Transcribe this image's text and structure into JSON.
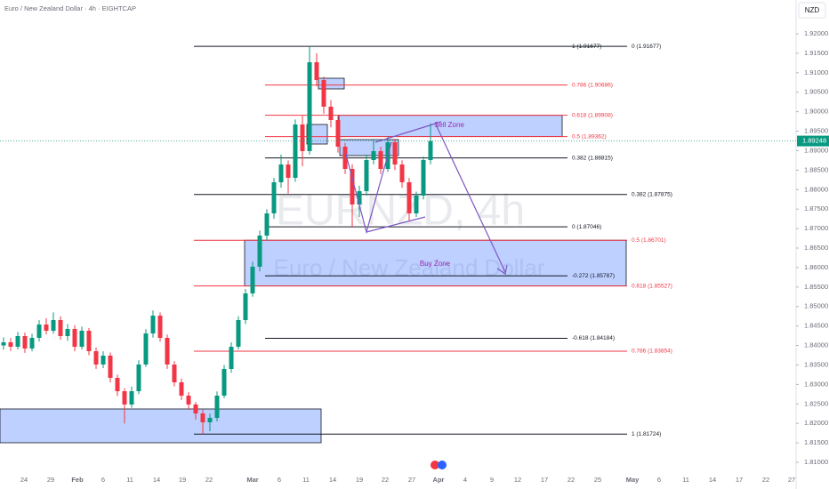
{
  "chart_data": {
    "type": "candlestick",
    "title": "Euro / New Zealand Dollar · 4h · EIGHTCAP",
    "watermark": "EURNZD, 4h",
    "watermark_sub": "Euro / New Zealand Dollar",
    "currency": "NZD",
    "up_color": "#089981",
    "down_color": "#f23645",
    "ylim": [
      1.80316,
      1.92867
    ],
    "yticks": [
      {
        "value": 1.81,
        "label": "1.81000"
      },
      {
        "value": 1.815,
        "label": "1.81500"
      },
      {
        "value": 1.82,
        "label": "1.82000"
      },
      {
        "value": 1.825,
        "label": "1.82500"
      },
      {
        "value": 1.83,
        "label": "1.83000"
      },
      {
        "value": 1.835,
        "label": "1.83500"
      },
      {
        "value": 1.84,
        "label": "1.84000"
      },
      {
        "value": 1.845,
        "label": "1.84500"
      },
      {
        "value": 1.85,
        "label": "1.85000"
      },
      {
        "value": 1.855,
        "label": "1.85500"
      },
      {
        "value": 1.86,
        "label": "1.86000"
      },
      {
        "value": 1.865,
        "label": "1.86500"
      },
      {
        "value": 1.87,
        "label": "1.87000"
      },
      {
        "value": 1.875,
        "label": "1.87500"
      },
      {
        "value": 1.88,
        "label": "1.88000"
      },
      {
        "value": 1.885,
        "label": "1.88500"
      },
      {
        "value": 1.89,
        "label": "1.89000"
      },
      {
        "value": 1.895,
        "label": "1.89500"
      },
      {
        "value": 1.9,
        "label": "1.90000"
      },
      {
        "value": 1.905,
        "label": "1.90500"
      },
      {
        "value": 1.91,
        "label": "1.91000"
      },
      {
        "value": 1.915,
        "label": "1.91500"
      },
      {
        "value": 1.92,
        "label": "1.92000"
      }
    ],
    "x_labels": [
      "24",
      "29",
      "Feb",
      "6",
      "11",
      "14",
      "19",
      "22",
      "Mar",
      "6",
      "11",
      "14",
      "19",
      "22",
      "27",
      "Apr",
      "4",
      "9",
      "12",
      "17",
      "22",
      "25",
      "May",
      "6",
      "11",
      "14",
      "17",
      "22",
      "27"
    ],
    "last_price": 1.89248,
    "last_price_label": "1.89248",
    "candles": [
      [
        1.84,
        1.8421,
        1.8389,
        1.84081
      ],
      [
        1.84081,
        1.8419,
        1.8386,
        1.83967
      ],
      [
        1.83967,
        1.8435,
        1.839,
        1.84241
      ],
      [
        1.84241,
        1.8433,
        1.8381,
        1.83922
      ],
      [
        1.83922,
        1.843,
        1.8385,
        1.84195
      ],
      [
        1.84195,
        1.8465,
        1.841,
        1.84538
      ],
      [
        1.84538,
        1.847,
        1.8428,
        1.84378
      ],
      [
        1.84378,
        1.8485,
        1.843,
        1.84652
      ],
      [
        1.84652,
        1.8475,
        1.8415,
        1.84241
      ],
      [
        1.84241,
        1.8455,
        1.8412,
        1.84424
      ],
      [
        1.84424,
        1.8452,
        1.8385,
        1.83967
      ],
      [
        1.83967,
        1.8448,
        1.839,
        1.84378
      ],
      [
        1.84378,
        1.8445,
        1.8375,
        1.83853
      ],
      [
        1.83853,
        1.8395,
        1.834,
        1.83511
      ],
      [
        1.83511,
        1.8385,
        1.8342,
        1.83739
      ],
      [
        1.83739,
        1.8382,
        1.8305,
        1.83168
      ],
      [
        1.83168,
        1.8325,
        1.827,
        1.82826
      ],
      [
        1.82826,
        1.829,
        1.82,
        1.82484
      ],
      [
        1.82484,
        1.8295,
        1.824,
        1.82826
      ],
      [
        1.82826,
        1.8362,
        1.8275,
        1.83511
      ],
      [
        1.83511,
        1.8442,
        1.8345,
        1.84309
      ],
      [
        1.84309,
        1.849,
        1.842,
        1.84766
      ],
      [
        1.84766,
        1.8485,
        1.841,
        1.84195
      ],
      [
        1.84195,
        1.8428,
        1.834,
        1.83511
      ],
      [
        1.83511,
        1.836,
        1.8295,
        1.83054
      ],
      [
        1.83054,
        1.8315,
        1.826,
        1.82712
      ],
      [
        1.82712,
        1.828,
        1.8235,
        1.82484
      ],
      [
        1.82484,
        1.8255,
        1.821,
        1.82256
      ],
      [
        1.82256,
        1.8235,
        1.81724,
        1.82027
      ],
      [
        1.82027,
        1.8225,
        1.818,
        1.82142
      ],
      [
        1.82142,
        1.8282,
        1.8205,
        1.82712
      ],
      [
        1.82712,
        1.835,
        1.8265,
        1.83397
      ],
      [
        1.83397,
        1.8408,
        1.833,
        1.83967
      ],
      [
        1.83967,
        1.8475,
        1.839,
        1.84652
      ],
      [
        1.84652,
        1.8545,
        1.8455,
        1.85336
      ],
      [
        1.85336,
        1.8615,
        1.8525,
        1.86021
      ],
      [
        1.86021,
        1.8695,
        1.859,
        1.8682
      ],
      [
        1.8682,
        1.875,
        1.867,
        1.8739
      ],
      [
        1.8739,
        1.883,
        1.8725,
        1.88189
      ],
      [
        1.88189,
        1.889,
        1.8805,
        1.88645
      ],
      [
        1.88645,
        1.8875,
        1.879,
        1.88303
      ],
      [
        1.88303,
        1.898,
        1.882,
        1.89672
      ],
      [
        1.89672,
        1.899,
        1.886,
        1.88988
      ],
      [
        1.88988,
        1.91677,
        1.889,
        1.9127
      ],
      [
        1.9127,
        1.915,
        1.9065,
        1.90813
      ],
      [
        1.90813,
        1.909,
        1.8995,
        1.90129
      ],
      [
        1.90129,
        1.903,
        1.896,
        1.89786
      ],
      [
        1.89786,
        1.899,
        1.8895,
        1.89102
      ],
      [
        1.89102,
        1.892,
        1.884,
        1.88531
      ],
      [
        1.88531,
        1.8865,
        1.87046,
        1.87618
      ],
      [
        1.87618,
        1.881,
        1.873,
        1.87961
      ],
      [
        1.87961,
        1.889,
        1.8785,
        1.88759
      ],
      [
        1.88759,
        1.893,
        1.8865,
        1.88988
      ],
      [
        1.88988,
        1.891,
        1.884,
        1.88531
      ],
      [
        1.88531,
        1.89362,
        1.8845,
        1.89216
      ],
      [
        1.89216,
        1.893,
        1.885,
        1.88645
      ],
      [
        1.88645,
        1.8875,
        1.8805,
        1.88189
      ],
      [
        1.88189,
        1.883,
        1.872,
        1.8739
      ],
      [
        1.8739,
        1.8795,
        1.873,
        1.87847
      ],
      [
        1.87847,
        1.8885,
        1.8775,
        1.88759
      ],
      [
        1.88759,
        1.897,
        1.8865,
        1.89248
      ]
    ],
    "fib_levels": [
      {
        "label": "1 (1.91677)",
        "value": 1.91677,
        "color": "#131722"
      },
      {
        "label": "0 (1.91677)",
        "value": 1.91677,
        "color": "#131722"
      },
      {
        "label": "0.786 (1.90686)",
        "value": 1.90686,
        "color": "#f23645"
      },
      {
        "label": "0.618 (1.89908)",
        "value": 1.89908,
        "color": "#f23645"
      },
      {
        "label": "0.5 (1.89362)",
        "value": 1.89362,
        "color": "#f23645"
      },
      {
        "label": "0.382 (1.88815)",
        "value": 1.88815,
        "color": "#131722"
      },
      {
        "label": "0.382 (1.87875)",
        "value": 1.87875,
        "color": "#131722"
      },
      {
        "label": "0 (1.87046)",
        "value": 1.87046,
        "color": "#131722"
      },
      {
        "label": "0.5 (1.86701)",
        "value": 1.86701,
        "color": "#f23645"
      },
      {
        "label": "-0.272 (1.85787)",
        "value": 1.85787,
        "color": "#131722"
      },
      {
        "label": "0.618 (1.85527)",
        "value": 1.85527,
        "color": "#f23645"
      },
      {
        "label": "-0.618 (1.84184)",
        "value": 1.84184,
        "color": "#131722"
      },
      {
        "label": "0.786 (1.83854)",
        "value": 1.83854,
        "color": "#f23645"
      },
      {
        "label": "1 (1.81724)",
        "value": 1.81724,
        "color": "#131722"
      }
    ],
    "zones": [
      {
        "label": "Sell Zone",
        "top": 1.89908,
        "bottom": 1.89362
      },
      {
        "label": "Buy Zone",
        "top": 1.86701,
        "bottom": 1.85527
      },
      {
        "top": 1.90859,
        "bottom": 1.90585
      },
      {
        "top": 1.89672,
        "bottom": 1.8917
      },
      {
        "top": 1.89284,
        "bottom": 1.88874
      },
      {
        "top": 1.8237,
        "bottom": 1.81503
      }
    ]
  }
}
